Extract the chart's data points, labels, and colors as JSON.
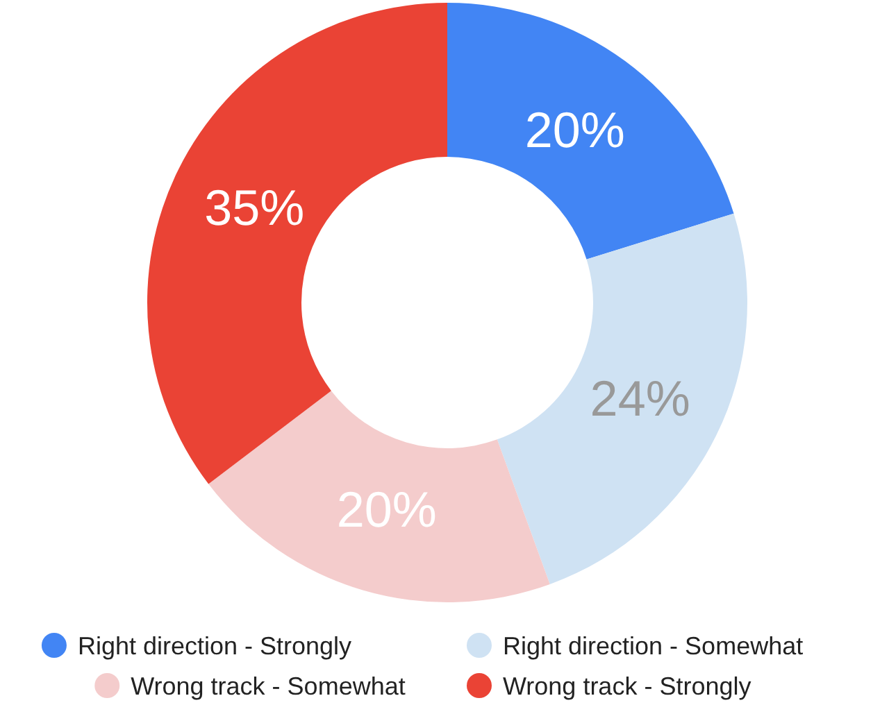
{
  "chart_data": {
    "type": "donut",
    "categories": [
      "Right direction - Strongly",
      "Right direction - Somewhat",
      "Wrong track - Somewhat",
      "Wrong track - Strongly"
    ],
    "values": [
      20,
      24,
      20,
      35
    ],
    "colors": [
      "#4285f4",
      "#cfe2f3",
      "#f4cccc",
      "#ea4335"
    ],
    "value_labels": [
      "20%",
      "24%",
      "20%",
      "35%"
    ],
    "legend": "bottom"
  }
}
